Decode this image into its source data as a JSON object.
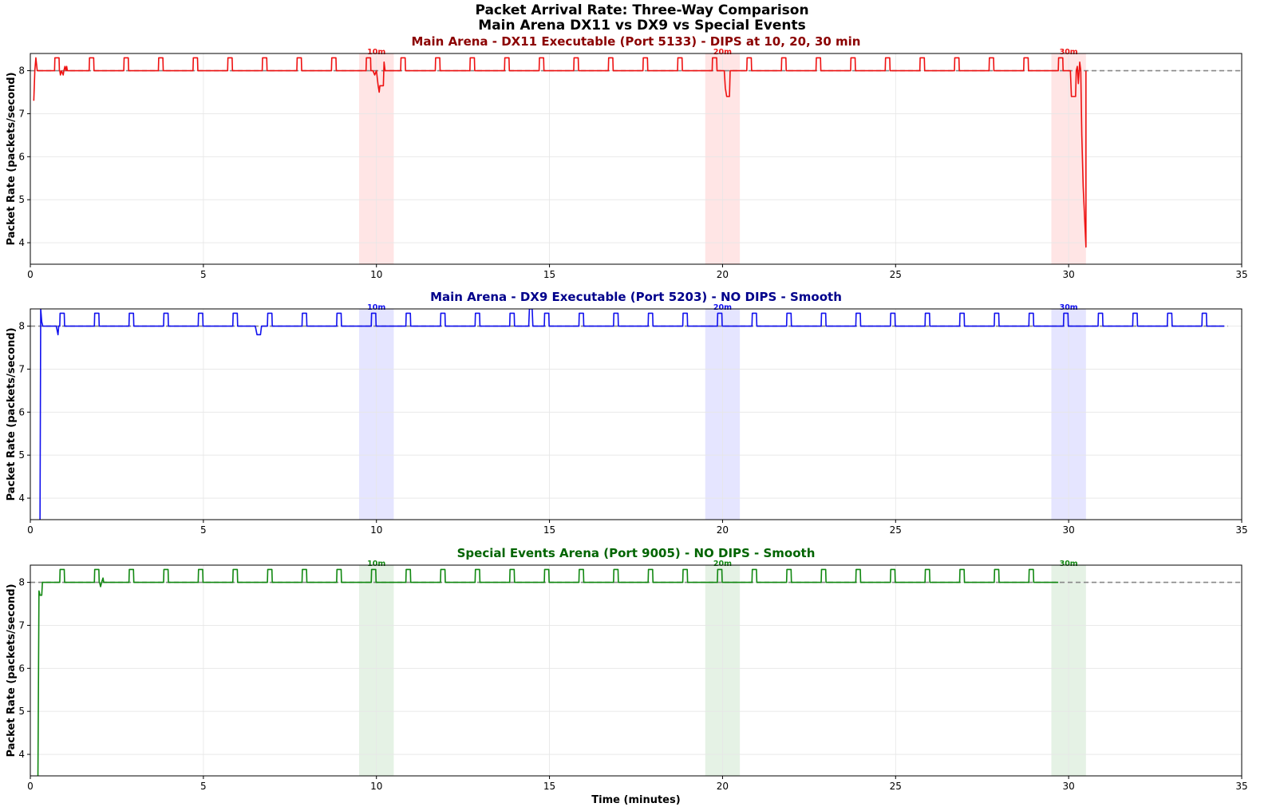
{
  "figure": {
    "suptitle_line1": "Packet Arrival Rate: Three-Way Comparison",
    "suptitle_line2": "Main Arena DX11 vs DX9 vs Special Events"
  },
  "chart_data": [
    {
      "type": "line",
      "title": "Main Arena - DX11 Executable (Port 5133) - DIPS at 10, 20, 30 min",
      "title_color": "#8b0000",
      "xlabel": "",
      "ylabel": "Packet Rate (packets/second)",
      "xlim": [
        0,
        35
      ],
      "ylim": [
        3.5,
        8.4
      ],
      "xticks": [
        0,
        5,
        10,
        15,
        20,
        25,
        30,
        35
      ],
      "yticks": [
        4,
        5,
        6,
        7,
        8
      ],
      "grid": true,
      "line_color": "#ee1111",
      "band_color": "#ffcccc",
      "reference_line": 8.0,
      "reference_xmax": 35,
      "highlight_bands": [
        {
          "start": 9.5,
          "end": 10.5,
          "label": "10m"
        },
        {
          "start": 19.5,
          "end": 20.5,
          "label": "20m"
        },
        {
          "start": 29.5,
          "end": 30.5,
          "label": "30m"
        }
      ],
      "series": [
        {
          "baseline": 8.0,
          "x_start": 0.1,
          "x_end": 30.5,
          "periodic_spikes": {
            "first": 0.7,
            "period": 1.0,
            "width": 0.13,
            "height": 8.3,
            "last": 29.7
          },
          "points": [
            [
              0.1,
              7.3
            ],
            [
              0.13,
              8.0
            ],
            [
              0.16,
              8.3
            ],
            [
              0.2,
              8.0
            ],
            [
              0.85,
              8.0
            ],
            [
              0.87,
              7.9
            ],
            [
              0.9,
              8.0
            ],
            [
              0.95,
              7.9
            ],
            [
              0.97,
              8.0
            ],
            [
              1.0,
              8.1
            ],
            [
              1.03,
              8.0
            ],
            [
              1.05,
              8.1
            ],
            [
              1.07,
              8.0
            ],
            [
              9.9,
              8.0
            ],
            [
              9.95,
              7.9
            ],
            [
              10.0,
              8.0
            ],
            [
              10.05,
              7.65
            ],
            [
              10.08,
              7.5
            ],
            [
              10.1,
              7.65
            ],
            [
              10.2,
              7.65
            ],
            [
              10.22,
              8.2
            ],
            [
              10.25,
              8.0
            ],
            [
              20.05,
              8.0
            ],
            [
              20.08,
              7.6
            ],
            [
              20.12,
              7.4
            ],
            [
              20.2,
              7.4
            ],
            [
              20.22,
              8.0
            ],
            [
              30.05,
              8.0
            ],
            [
              30.08,
              7.4
            ],
            [
              30.2,
              7.4
            ],
            [
              30.22,
              8.0
            ],
            [
              30.25,
              8.1
            ],
            [
              30.28,
              7.7
            ],
            [
              30.32,
              8.2
            ],
            [
              30.35,
              8.0
            ],
            [
              30.38,
              6.5
            ],
            [
              30.42,
              5.3
            ],
            [
              30.5,
              3.9
            ]
          ]
        }
      ]
    },
    {
      "type": "line",
      "title": "Main Arena - DX9 Executable (Port 5203) - NO DIPS - Smooth",
      "title_color": "#00008b",
      "xlabel": "",
      "ylabel": "Packet Rate (packets/second)",
      "xlim": [
        0,
        35
      ],
      "ylim": [
        3.5,
        8.4
      ],
      "xticks": [
        0,
        5,
        10,
        15,
        20,
        25,
        30,
        35
      ],
      "yticks": [
        4,
        5,
        6,
        7,
        8
      ],
      "grid": true,
      "line_color": "#1111ee",
      "band_color": "#ccccff",
      "reference_line": 8.0,
      "reference_xmax": 34.6,
      "highlight_bands": [
        {
          "start": 9.5,
          "end": 10.5,
          "label": "10m"
        },
        {
          "start": 19.5,
          "end": 20.5,
          "label": "20m"
        },
        {
          "start": 29.5,
          "end": 30.5,
          "label": "30m"
        }
      ],
      "series": [
        {
          "baseline": 8.0,
          "x_start": 0.28,
          "x_end": 34.5,
          "periodic_spikes": {
            "first": 0.85,
            "period": 1.0,
            "width": 0.13,
            "height": 8.3,
            "last": 33.9
          },
          "points": [
            [
              0.28,
              3.5
            ],
            [
              0.3,
              8.4
            ],
            [
              0.33,
              8.1
            ],
            [
              0.36,
              8.0
            ],
            [
              0.75,
              8.0
            ],
            [
              0.8,
              7.8
            ],
            [
              0.82,
              8.0
            ],
            [
              6.5,
              8.0
            ],
            [
              6.55,
              7.8
            ],
            [
              6.65,
              7.8
            ],
            [
              6.68,
              8.0
            ],
            [
              14.4,
              8.0
            ],
            [
              14.42,
              8.4
            ],
            [
              14.5,
              8.4
            ],
            [
              14.52,
              8.0
            ]
          ]
        }
      ]
    },
    {
      "type": "line",
      "title": "Special Events Arena (Port 9005) - NO DIPS - Smooth",
      "title_color": "#006400",
      "xlabel": "Time (minutes)",
      "ylabel": "Packet Rate (packets/second)",
      "xlim": [
        0,
        35
      ],
      "ylim": [
        3.5,
        8.4
      ],
      "xticks": [
        0,
        5,
        10,
        15,
        20,
        25,
        30,
        35
      ],
      "yticks": [
        4,
        5,
        6,
        7,
        8
      ],
      "grid": true,
      "line_color": "#118811",
      "band_color": "#cce6cc",
      "reference_line": 8.0,
      "reference_xmax": 35,
      "highlight_bands": [
        {
          "start": 9.5,
          "end": 10.5,
          "label": "10m"
        },
        {
          "start": 19.5,
          "end": 20.5,
          "label": "20m"
        },
        {
          "start": 29.5,
          "end": 30.5,
          "label": "30m"
        }
      ],
      "series": [
        {
          "baseline": 8.0,
          "x_start": 0.22,
          "x_end": 29.7,
          "periodic_spikes": {
            "first": 0.85,
            "period": 1.0,
            "width": 0.13,
            "height": 8.3,
            "last": 28.9
          },
          "points": [
            [
              0.22,
              3.5
            ],
            [
              0.25,
              7.8
            ],
            [
              0.28,
              7.7
            ],
            [
              0.33,
              7.7
            ],
            [
              0.35,
              8.0
            ],
            [
              2.0,
              8.0
            ],
            [
              2.03,
              7.9
            ],
            [
              2.06,
              8.0
            ],
            [
              2.1,
              8.1
            ],
            [
              2.12,
              8.0
            ]
          ]
        }
      ]
    }
  ]
}
